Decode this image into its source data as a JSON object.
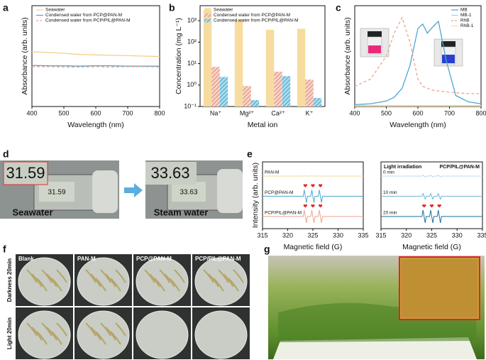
{
  "chart_data": [
    {
      "panel": "a",
      "type": "line",
      "xlabel": "Wavelength (nm)",
      "ylabel": "Absorbance (arb. units)",
      "xlim": [
        400,
        800
      ],
      "xticks": [
        400,
        500,
        600,
        700,
        800
      ],
      "ylim": [
        -0.1,
        0.15
      ],
      "legend": "upper left",
      "x": [
        400,
        450,
        500,
        550,
        600,
        650,
        700,
        750,
        800
      ],
      "series": [
        {
          "name": "Seawater",
          "color": "#f3cf8a",
          "values": [
            0.036,
            0.034,
            0.032,
            0.029,
            0.028,
            0.027,
            0.026,
            0.025,
            0.024
          ]
        },
        {
          "name": "Condensed water from PCP@PAN-M",
          "color": "#4aa8cf",
          "values": [
            0.002,
            0.001,
            0.001,
            0.0,
            0.001,
            0.001,
            0.0,
            0.0,
            0.0
          ]
        },
        {
          "name": "Condensed water from PCP/PIL@PAN-M",
          "color": "#e8a08a",
          "dash": true,
          "values": [
            -0.001,
            -0.001,
            -0.002,
            -0.002,
            -0.001,
            -0.002,
            -0.001,
            -0.001,
            -0.002
          ]
        }
      ]
    },
    {
      "panel": "b",
      "type": "bar",
      "xlabel": "Metal ion",
      "ylabel": "Concentration (mg L⁻¹)",
      "log": true,
      "ylim": [
        0.1,
        5000
      ],
      "legend": "upper left",
      "yticks": [
        {
          "value": 0.1,
          "label": "10⁻¹"
        },
        {
          "value": 1,
          "label": "10⁰"
        },
        {
          "value": 10,
          "label": "10¹"
        },
        {
          "value": 100,
          "label": "10²"
        },
        {
          "value": 1000,
          "label": "10³"
        }
      ],
      "categories": [
        "Na⁺",
        "Mg²⁺",
        "Ca²⁺",
        "K⁺"
      ],
      "series": [
        {
          "name": "Seawater",
          "color": "#f6dc9e",
          "values": [
            3000,
            1100,
            380,
            420
          ]
        },
        {
          "name": "Condensed water from PCP@PAN-M",
          "color": "#e8a08a",
          "hatch": true,
          "values": [
            7,
            0.9,
            4.2,
            1.8
          ]
        },
        {
          "name": "Condensed water from PCP/PIL@PAN-M",
          "color": "#4fb3d6",
          "hatch": true,
          "values": [
            2.4,
            0.2,
            2.6,
            0.25
          ]
        }
      ]
    },
    {
      "panel": "c",
      "type": "line",
      "xlabel": "Wavelength (nm)",
      "ylabel": "Absorbance (arb. units)",
      "xlim": [
        400,
        800
      ],
      "xticks": [
        400,
        500,
        600,
        700,
        800
      ],
      "ylim": [
        0,
        1.1
      ],
      "legend": "upper right",
      "x": [
        400,
        450,
        500,
        525,
        550,
        575,
        600,
        615,
        630,
        645,
        665,
        690,
        720,
        760,
        800
      ],
      "series": [
        {
          "name": "MB",
          "color": "#4aa8cf",
          "values": [
            0.02,
            0.03,
            0.06,
            0.1,
            0.2,
            0.45,
            0.85,
            0.9,
            0.8,
            0.86,
            0.93,
            0.5,
            0.12,
            0.05,
            0.03
          ]
        },
        {
          "name": "MB-1",
          "color": "#9fd4ea",
          "values": [
            0.01,
            0.01,
            0.01,
            0.01,
            0.01,
            0.01,
            0.01,
            0.01,
            0.01,
            0.01,
            0.01,
            0.01,
            0.01,
            0.01,
            0.01
          ]
        },
        {
          "name": "RhB",
          "color": "#eca58c",
          "dash": true,
          "values": [
            0.22,
            0.3,
            0.55,
            0.8,
            0.97,
            0.7,
            0.3,
            0.22,
            0.2,
            0.18,
            0.17,
            0.16,
            0.15,
            0.14,
            0.14
          ]
        },
        {
          "name": "RhB-1",
          "color": "#f3d9a0",
          "values": [
            0.005,
            0.005,
            0.005,
            0.005,
            0.005,
            0.005,
            0.005,
            0.005,
            0.005,
            0.005,
            0.005,
            0.005,
            0.005,
            0.005,
            0.005
          ]
        }
      ]
    },
    {
      "panel": "e",
      "type": "esr",
      "xlabel": "Magnetic field (G)",
      "ylabel": "Intensity (arb. units)",
      "xlim": [
        315,
        335
      ],
      "xticks": [
        315,
        320,
        325,
        330,
        335
      ],
      "traces": [
        {
          "label": "PAN-M",
          "color": "#f0d8a0"
        },
        {
          "label": "PCP@PAN-M",
          "color": "#4aa8cf"
        },
        {
          "label": "PCP/PIL@PAN-M",
          "color": "#eca58c"
        }
      ]
    },
    {
      "type": "esr",
      "xlabel": "Magnetic field (G)",
      "xlim": [
        315,
        335
      ],
      "xticks": [
        315,
        320,
        325,
        330,
        335
      ],
      "annotations": [
        "Light irradiation",
        "PCP/PIL@PAN-M"
      ],
      "traces": [
        {
          "label": "0 min",
          "color": "#b9dcec"
        },
        {
          "label": "10 min",
          "color": "#6fb6d6"
        },
        {
          "label": "20 min",
          "color": "#1f6f9e"
        }
      ]
    }
  ],
  "photos": {
    "d": {
      "panel": "d",
      "readings": [
        "31.59",
        "33.63"
      ],
      "captions": [
        "Seawater",
        "Steam water"
      ]
    },
    "f": {
      "panel": "f",
      "columns": [
        "Blank",
        "PAN-M",
        "PCP@PAN-M",
        "PCP/PIL@PAN-M"
      ],
      "rows": [
        "Darkness 20min",
        "Light 20min"
      ]
    },
    "g": {
      "panel": "g"
    }
  }
}
